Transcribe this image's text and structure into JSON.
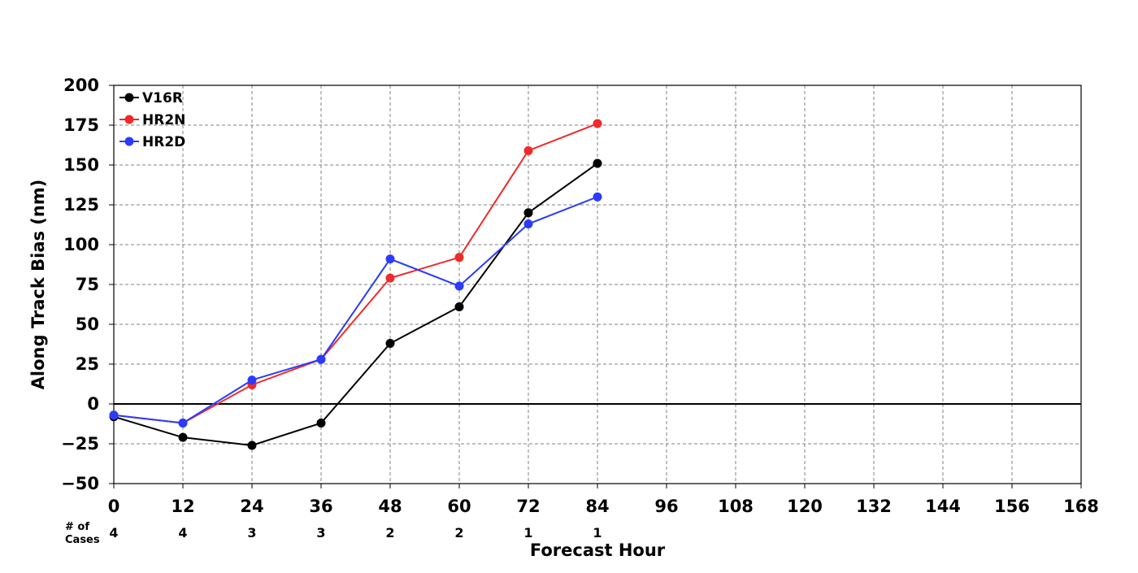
{
  "chart_data": {
    "type": "line",
    "title": "",
    "xlabel": "Forecast Hour",
    "ylabel": "Along Track Bias (nm)",
    "x": [
      0,
      12,
      24,
      36,
      48,
      60,
      72,
      84
    ],
    "xticks": [
      0,
      12,
      24,
      36,
      48,
      60,
      72,
      84,
      96,
      108,
      120,
      132,
      144,
      156,
      168
    ],
    "yticks": [
      -50,
      -25,
      0,
      25,
      50,
      75,
      100,
      125,
      150,
      175,
      200
    ],
    "xlim": [
      0,
      168
    ],
    "ylim": [
      -50,
      200
    ],
    "grid": true,
    "legend_position": "top-left",
    "cases_label": [
      "# of",
      "Cases"
    ],
    "cases": [
      4,
      4,
      3,
      3,
      2,
      2,
      1,
      1
    ],
    "series": [
      {
        "name": "V16R",
        "color": "#000000",
        "values": [
          -8,
          -21,
          -26,
          -12,
          38,
          61,
          120,
          151
        ]
      },
      {
        "name": "HR2N",
        "color": "#ee2a2a",
        "values": [
          -7,
          -12,
          12,
          28,
          79,
          92,
          159,
          176
        ]
      },
      {
        "name": "HR2D",
        "color": "#2a3cfa",
        "values": [
          -7,
          -12,
          15,
          28,
          91,
          74,
          113,
          130
        ]
      }
    ]
  }
}
